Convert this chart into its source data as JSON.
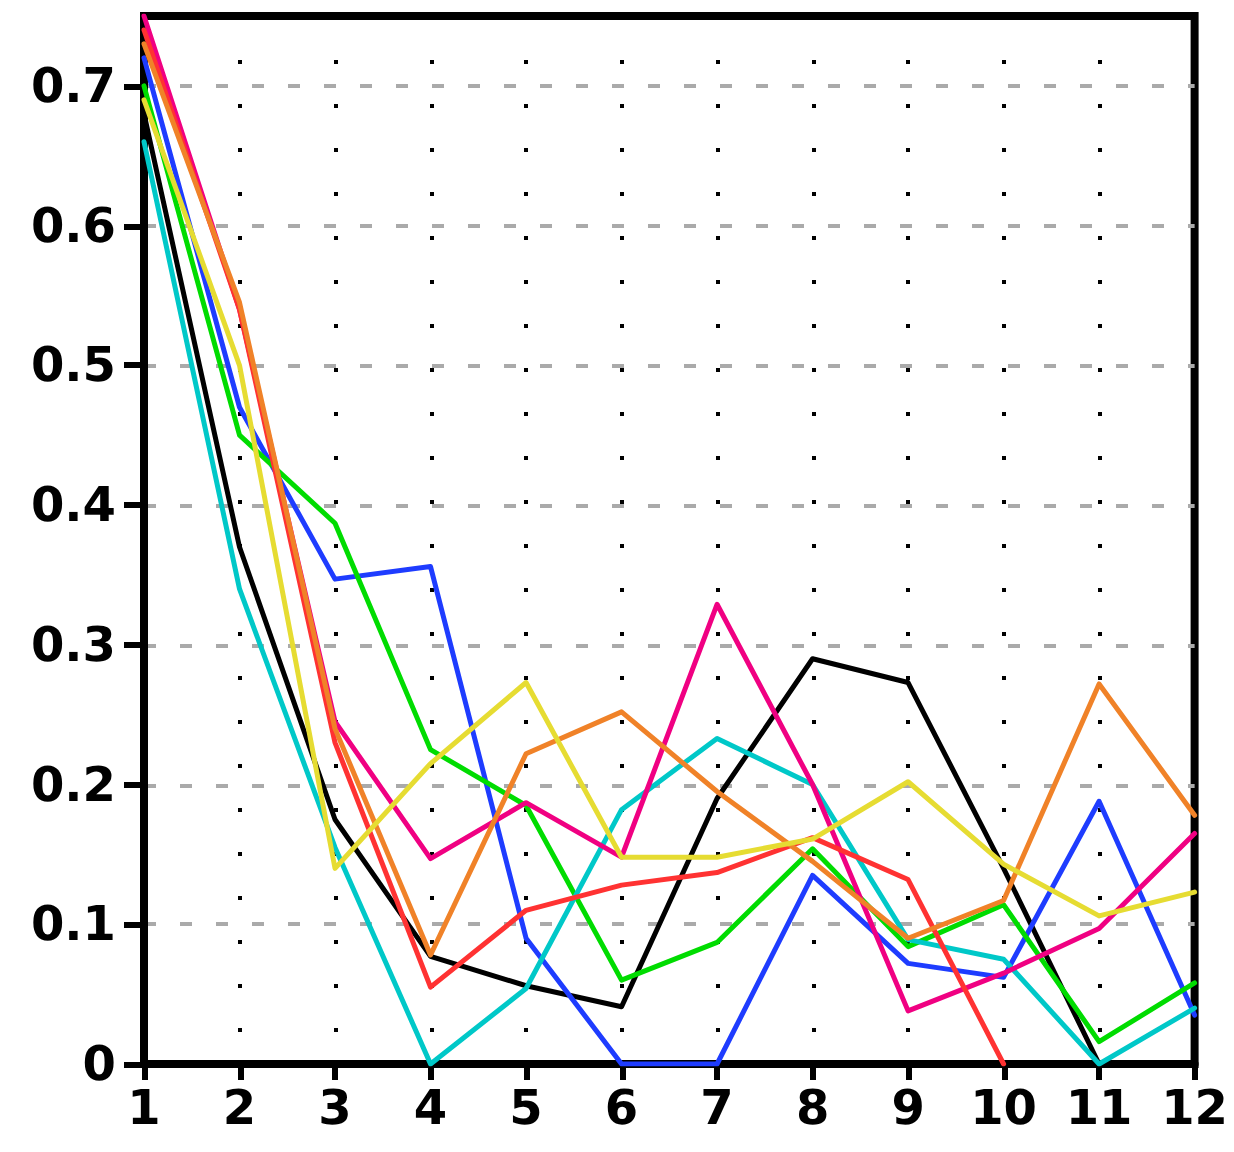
{
  "chart_data": {
    "type": "line",
    "x": [
      1,
      2,
      3,
      4,
      5,
      6,
      7,
      8,
      9,
      10,
      11,
      12
    ],
    "xlim": [
      1,
      12
    ],
    "xticks": [
      1,
      2,
      3,
      4,
      5,
      6,
      7,
      8,
      9,
      10,
      11,
      12
    ],
    "ylim": [
      0,
      0.75
    ],
    "yticks": [
      0,
      0.1,
      0.2,
      0.3,
      0.4,
      0.5,
      0.6,
      0.7
    ],
    "grid": true,
    "series": [
      {
        "color": "#000000",
        "values": [
          0.68,
          0.37,
          0.175,
          0.077,
          0.056,
          0.041,
          0.19,
          0.29,
          0.273,
          0.14,
          0.0,
          null
        ]
      },
      {
        "color": "#1e3cff",
        "values": [
          0.72,
          0.47,
          0.347,
          0.356,
          0.09,
          0.0,
          0.0,
          0.135,
          0.072,
          0.062,
          0.188,
          0.035
        ]
      },
      {
        "color": "#00dc00",
        "values": [
          0.7,
          0.45,
          0.387,
          0.225,
          0.185,
          0.06,
          0.087,
          0.154,
          0.084,
          0.114,
          0.016,
          0.058
        ]
      },
      {
        "color": "#00c8c8",
        "values": [
          0.66,
          0.34,
          0.155,
          0.0,
          0.054,
          0.182,
          0.233,
          0.2,
          0.089,
          0.075,
          0.0,
          0.04
        ]
      },
      {
        "color": "#f00082",
        "values": [
          0.75,
          0.54,
          0.245,
          0.147,
          0.187,
          0.148,
          0.329,
          0.2,
          0.038,
          0.065,
          0.097,
          0.165
        ]
      },
      {
        "color": "#ff3232",
        "values": [
          0.74,
          0.54,
          0.23,
          0.055,
          0.11,
          0.128,
          0.137,
          0.162,
          0.132,
          0.0,
          null,
          null
        ]
      },
      {
        "color": "#f08228",
        "values": [
          0.73,
          0.545,
          0.24,
          0.078,
          0.222,
          0.252,
          0.195,
          0.145,
          0.09,
          0.117,
          0.272,
          0.178
        ]
      },
      {
        "color": "#e6dc32",
        "values": [
          0.69,
          0.5,
          0.14,
          0.215,
          0.273,
          0.148,
          0.148,
          0.161,
          0.202,
          0.143,
          0.106,
          0.123
        ]
      }
    ]
  }
}
